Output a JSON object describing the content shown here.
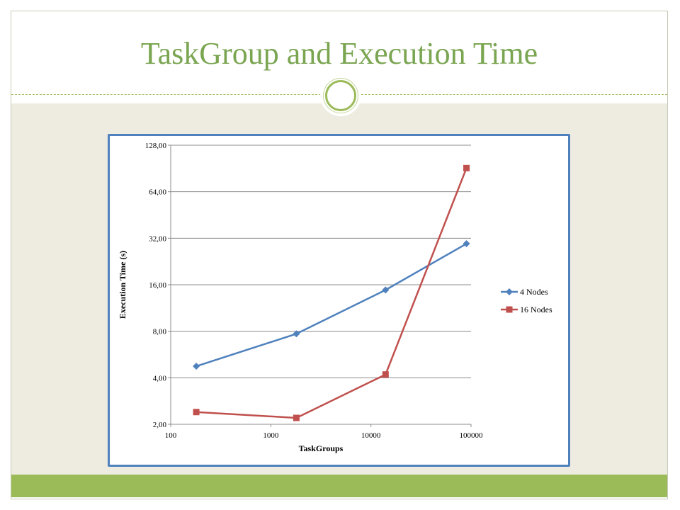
{
  "slide": {
    "title": "TaskGroup and Execution Time",
    "accent_color": "#9bbb59",
    "title_color": "#7aa551",
    "background_color": "#eeece1"
  },
  "chart_data": {
    "type": "line",
    "title": "",
    "xlabel": "TaskGroups",
    "ylabel": "Execution Time (s)",
    "x_scale": "log10",
    "y_scale": "log2",
    "xlim": [
      100,
      100000
    ],
    "ylim": [
      2,
      128
    ],
    "x_ticks": [
      "100",
      "1000",
      "10000",
      "100000"
    ],
    "y_ticks": [
      "2,00",
      "4,00",
      "8,00",
      "16,00",
      "32,00",
      "64,00",
      "128,00"
    ],
    "grid": "horizontal",
    "legend_position": "right",
    "series": [
      {
        "name": "4 Nodes",
        "color": "#4f81bd",
        "marker": "diamond",
        "x": [
          180,
          1800,
          14000,
          90000
        ],
        "y": [
          4.75,
          7.7,
          14.8,
          29.5
        ]
      },
      {
        "name": "16 Nodes",
        "color": "#c0504d",
        "marker": "square",
        "x": [
          180,
          1800,
          14000,
          90000
        ],
        "y": [
          2.4,
          2.2,
          4.2,
          91
        ]
      }
    ]
  }
}
